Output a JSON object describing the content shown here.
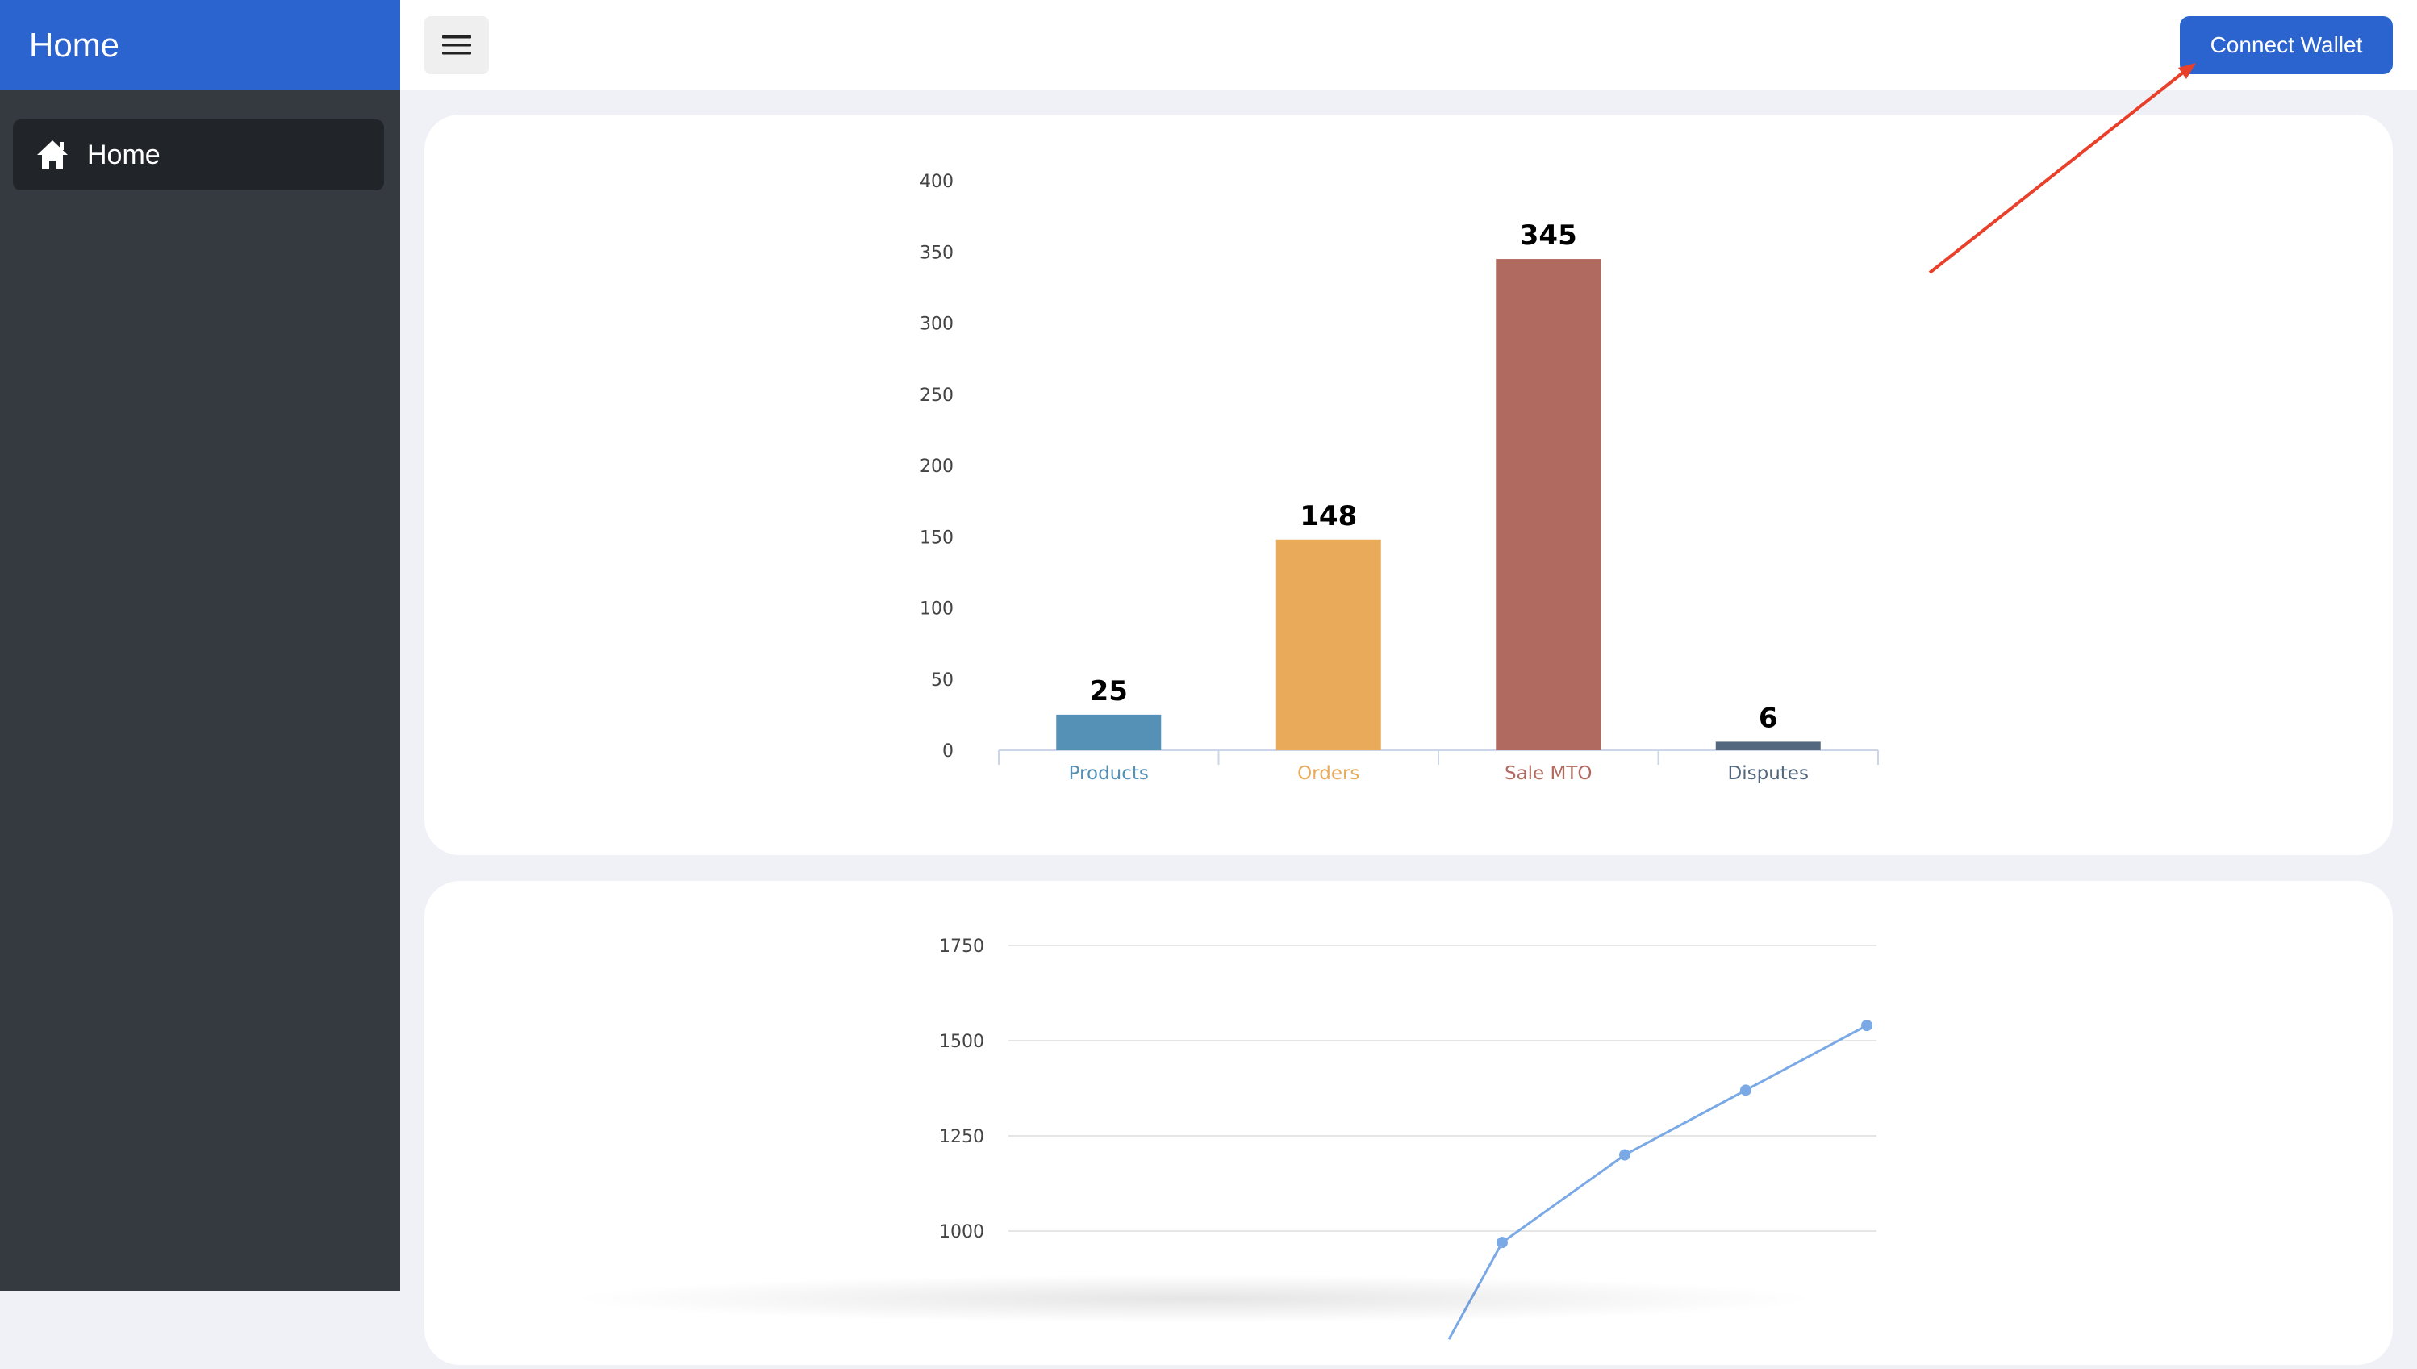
{
  "sidebar": {
    "brand": "Home",
    "items": [
      {
        "label": "Home",
        "icon": "home-icon"
      }
    ]
  },
  "topbar": {
    "menu_icon": "hamburger-menu-icon",
    "connect_label": "Connect Wallet"
  },
  "colors": {
    "brand": "#2c64cf",
    "sidebar": "#343a40",
    "sidebar_active": "#212529",
    "annotation_arrow": "#e8402a"
  },
  "chart_data": [
    {
      "type": "bar",
      "categories": [
        "Products",
        "Orders",
        "Sale MTO",
        "Disputes"
      ],
      "values": [
        25,
        148,
        345,
        6
      ],
      "colors": [
        "#5591b6",
        "#e9aa5a",
        "#b06a5f",
        "#53687e"
      ],
      "y_ticks": [
        0,
        50,
        100,
        150,
        200,
        250,
        300,
        350,
        400
      ],
      "ylim": [
        0,
        400
      ],
      "grid": false
    },
    {
      "type": "line",
      "series": [
        {
          "values": [
            970,
            1200,
            1370,
            1540
          ]
        }
      ],
      "y_ticks": [
        1000,
        1250,
        1500,
        1750
      ],
      "ylim": [
        1000,
        1750
      ],
      "color": "#7aa9e6",
      "grid": true
    }
  ]
}
